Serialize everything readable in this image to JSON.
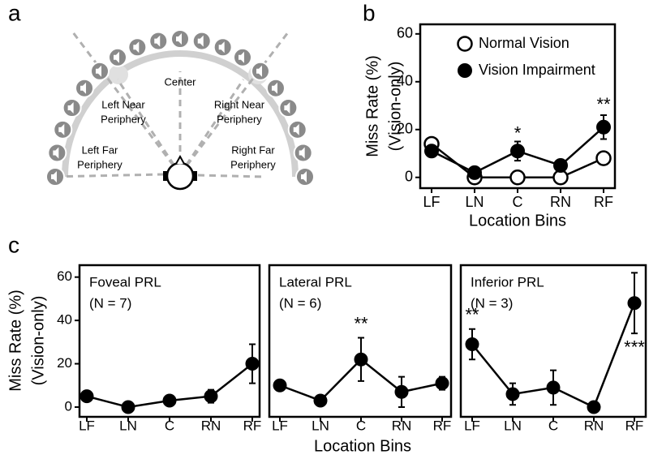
{
  "panel_labels": [
    "a",
    "b",
    "c"
  ],
  "diagram": {
    "labels": [
      {
        "lines": [
          "Center"
        ]
      },
      {
        "lines": [
          "Left Near",
          "Periphery"
        ]
      },
      {
        "lines": [
          "Right Near",
          "Periphery"
        ]
      },
      {
        "lines": [
          "Left Far",
          "Periphery"
        ]
      },
      {
        "lines": [
          "Right Far",
          "Periphery"
        ]
      }
    ]
  },
  "chart_data": [
    {
      "type": "line",
      "categories": [
        "LF",
        "LN",
        "C",
        "RN",
        "RF"
      ],
      "series": [
        {
          "name": "Normal Vision",
          "marker": "open",
          "color": "#000000",
          "values": [
            14,
            0,
            0,
            0,
            8
          ],
          "errors": [
            2,
            0.5,
            0.5,
            0.5,
            2.5
          ]
        },
        {
          "name": "Vision Impairment",
          "marker": "filled",
          "color": "#000000",
          "values": [
            11,
            2,
            11,
            5,
            21
          ],
          "errors": [
            1.5,
            1,
            4,
            2,
            5
          ]
        }
      ],
      "legend": "upper left",
      "ylim": [
        -4.5,
        64
      ],
      "yticks": [
        0,
        20,
        40,
        60
      ],
      "ylabel": [
        "Miss Rate (%)",
        "(Vision-only)"
      ],
      "xlabel": "Location Bins",
      "annotations": [
        {
          "text": "*",
          "x": "C",
          "y": 18
        },
        {
          "text": "**",
          "x": "RF",
          "y": 30
        }
      ]
    },
    {
      "type": "line",
      "title": "Foveal PRL",
      "subtitle": "(N = 7)",
      "categories": [
        "LF",
        "LN",
        "C",
        "RN",
        "RF"
      ],
      "series": [
        {
          "marker": "filled",
          "color": "#000000",
          "values": [
            5,
            0,
            3,
            5,
            20
          ],
          "errors": [
            1,
            0.5,
            1,
            3,
            9
          ]
        }
      ],
      "ylim": [
        -4.5,
        65.5
      ],
      "yticks": [
        0,
        20,
        40,
        60
      ],
      "ylabel": [
        "Miss Rate (%)",
        "(Vision-only)"
      ]
    },
    {
      "type": "line",
      "title": "Lateral PRL",
      "subtitle": "(N = 6)",
      "categories": [
        "LF",
        "LN",
        "C",
        "RN",
        "RF"
      ],
      "series": [
        {
          "marker": "filled",
          "color": "#000000",
          "values": [
            10,
            3,
            22,
            7,
            11
          ],
          "errors": [
            1,
            1,
            10,
            7,
            3
          ]
        }
      ],
      "ylim": [
        -4.5,
        65.5
      ],
      "xlabel": "Location Bins",
      "annotations": [
        {
          "text": "**",
          "x": "C",
          "y": 38
        }
      ]
    },
    {
      "type": "line",
      "title": "Inferior PRL",
      "subtitle": "(N = 3)",
      "categories": [
        "LF",
        "LN",
        "C",
        "RN",
        "RF"
      ],
      "series": [
        {
          "marker": "filled",
          "color": "#000000",
          "values": [
            29,
            6,
            9,
            0,
            48
          ],
          "errors": [
            7,
            5,
            8,
            0.5,
            14
          ]
        }
      ],
      "ylim": [
        -4.5,
        65.5
      ],
      "annotations": [
        {
          "text": "**",
          "x": "LF",
          "y": 42
        },
        {
          "text": "***",
          "x": "RF",
          "y": 27
        }
      ]
    }
  ]
}
